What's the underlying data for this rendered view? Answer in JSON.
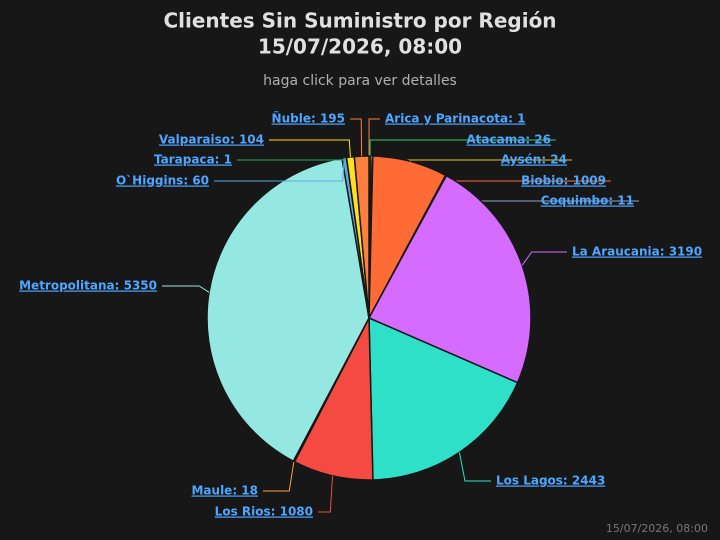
{
  "chart_data": {
    "type": "pie",
    "title": [
      "Clientes Sin Suministro por Región",
      "15/07/2026, 08:00"
    ],
    "subtitle": "haga click para ver detalles",
    "timestamp": "15/07/2026, 08:00",
    "values": [
      1,
      26,
      24,
      1009,
      11,
      3190,
      2443,
      1080,
      18,
      5350,
      60,
      1,
      104,
      195
    ],
    "value_labels": [
      "Arica y Parinacota: 1",
      "Atacama: 26",
      "Aysén: 24",
      "Biobio: 1009",
      "Coquimbo: 11",
      "La Araucania: 3190",
      "Los Lagos: 2443",
      "Los Rios: 1080",
      "Maule: 18",
      "Metropolitana: 5350",
      "O`Higgins: 60",
      "Tarapaca: 1",
      "Valparaiso: 104",
      "Ñuble: 195"
    ],
    "colors": [
      "#ff7f3f",
      "#2ecc71",
      "#f1c40f",
      "#ff6b35",
      "#8fa6c8",
      "#d66bff",
      "#2ee0c8",
      "#f44a42",
      "#ff9f43",
      "#95e8e2",
      "#5aa9e6",
      "#27ae60",
      "#ffe01a",
      "#ff7f3f"
    ]
  }
}
